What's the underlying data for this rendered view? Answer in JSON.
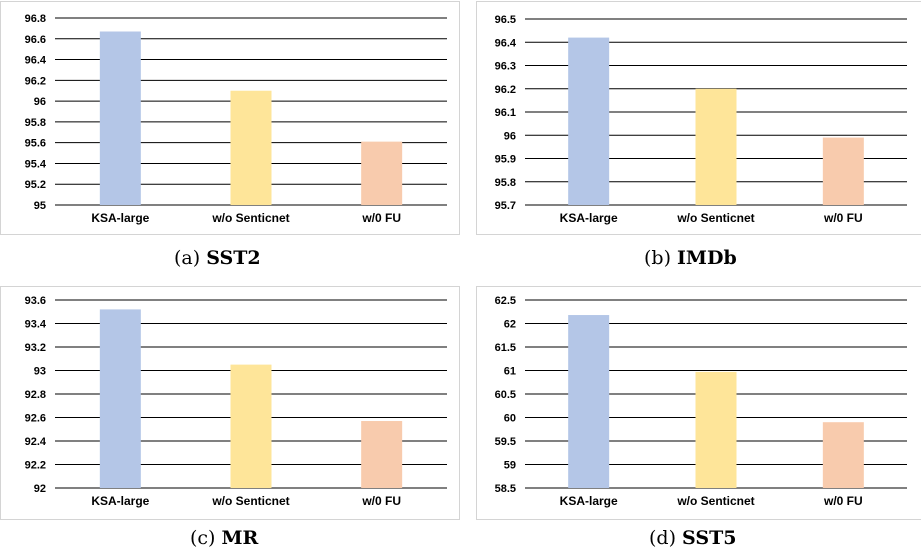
{
  "chart_data": [
    {
      "type": "bar",
      "caption_prefix": "(a)",
      "caption_name": "SST2",
      "categories": [
        "KSA-large",
        "w/o Senticnet",
        "w/0 FU"
      ],
      "values": [
        96.67,
        96.1,
        95.61
      ],
      "ylim": [
        95,
        96.8
      ],
      "yticks": [
        "95",
        "95.2",
        "95.4",
        "95.6",
        "95.8",
        "96",
        "96.2",
        "96.4",
        "96.6",
        "96.8"
      ],
      "colors": [
        "#b4c6e7",
        "#fee599",
        "#f8cbad"
      ],
      "grid": true
    },
    {
      "type": "bar",
      "caption_prefix": "(b)",
      "caption_name": "IMDb",
      "categories": [
        "KSA-large",
        "w/o Senticnet",
        "w/0 FU"
      ],
      "values": [
        96.42,
        96.2,
        95.99
      ],
      "ylim": [
        95.7,
        96.5
      ],
      "yticks": [
        "95.7",
        "95.8",
        "95.9",
        "96",
        "96.1",
        "96.2",
        "96.3",
        "96.4",
        "96.5"
      ],
      "colors": [
        "#b4c6e7",
        "#fee599",
        "#f8cbad"
      ],
      "grid": true
    },
    {
      "type": "bar",
      "caption_prefix": "(c)",
      "caption_name": "MR",
      "categories": [
        "KSA-large",
        "w/o Senticnet",
        "w/0 FU"
      ],
      "values": [
        93.52,
        93.05,
        92.57
      ],
      "ylim": [
        92,
        93.6
      ],
      "yticks": [
        "92",
        "92.2",
        "92.4",
        "92.6",
        "92.8",
        "93",
        "93.2",
        "93.4",
        "93.6"
      ],
      "colors": [
        "#b4c6e7",
        "#fee599",
        "#f8cbad"
      ],
      "grid": true
    },
    {
      "type": "bar",
      "caption_prefix": "(d)",
      "caption_name": "SST5",
      "categories": [
        "KSA-large",
        "w/o Senticnet",
        "w/0 FU"
      ],
      "values": [
        62.18,
        60.97,
        59.9
      ],
      "ylim": [
        58.5,
        62.5
      ],
      "yticks": [
        "58.5",
        "59",
        "59.5",
        "60",
        "60.5",
        "61",
        "61.5",
        "62",
        "62.5"
      ],
      "colors": [
        "#b4c6e7",
        "#fee599",
        "#f8cbad"
      ],
      "grid": true
    }
  ]
}
